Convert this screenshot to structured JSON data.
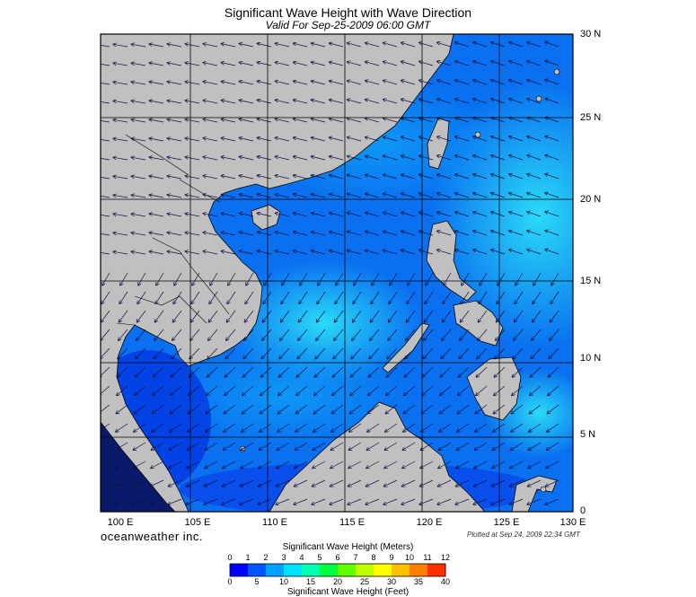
{
  "title": "Significant Wave Height with Wave Direction",
  "subtitle": "Valid For Sep-25-2009 06:00 GMT",
  "lon_labels": [
    "100 E",
    "105 E",
    "110 E",
    "115 E",
    "120 E",
    "125 E",
    "130 E"
  ],
  "lat_labels": [
    "30 N",
    "25 N",
    "20 N",
    "15 N",
    "10 N",
    "5 N",
    "0"
  ],
  "brand": "oceanweather inc.",
  "plotted": "Plotted at Sep 24, 2009 22:34 GMT",
  "colorbar": {
    "title_top": "Significant Wave Height (Meters)",
    "title_bottom": "Significant Wave Height (Feet)",
    "meters_ticks": [
      "0",
      "1",
      "2",
      "3",
      "4",
      "5",
      "6",
      "7",
      "8",
      "9",
      "10",
      "11",
      "12"
    ],
    "feet_ticks": [
      "0",
      "5",
      "10",
      "15",
      "20",
      "25",
      "30",
      "35",
      "40"
    ],
    "colors": [
      "#0000ff",
      "#0055ff",
      "#00a0ff",
      "#00e0ff",
      "#00ffb0",
      "#00ff40",
      "#60ff00",
      "#c0ff00",
      "#ffff00",
      "#ffc000",
      "#ff8000",
      "#ff3000"
    ]
  },
  "colors": {
    "land": "#c0c0c0",
    "ocean_deep": "#1a3cf0",
    "ocean_mid": "#0a78f5",
    "ocean_light": "#18c8f5",
    "arrow": "#101040"
  }
}
